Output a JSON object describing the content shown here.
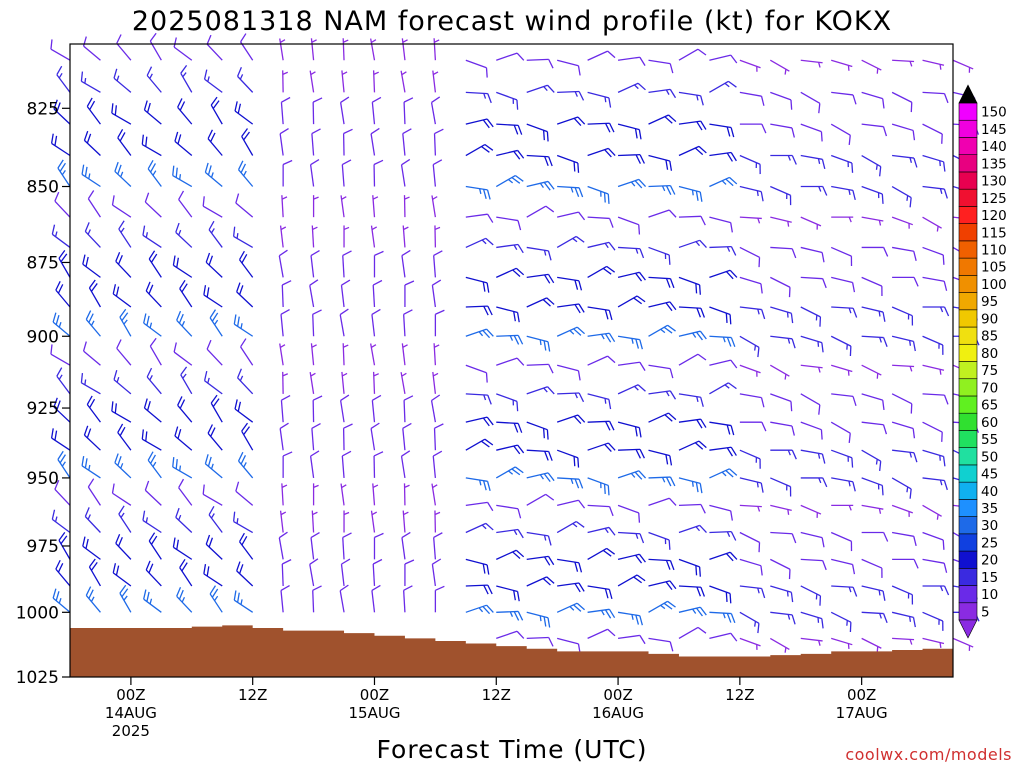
{
  "chart_data": {
    "type": "wind-barb-profile",
    "title": "2025081318 NAM forecast wind profile (kt) for KOKX",
    "xlabel": "Forecast Time (UTC)",
    "ylabel": "",
    "credit": "coolwx.com/models",
    "y_axis": {
      "unit": "hPa",
      "ylim": [
        1025,
        805
      ],
      "ticks": [
        825,
        850,
        875,
        900,
        925,
        950,
        975,
        1000,
        1025
      ]
    },
    "x_axis": {
      "start": "2025-08-13 18Z",
      "end": "2025-08-17 09Z",
      "step_hours": 3,
      "ticks": [
        {
          "time": "2025-08-14 00Z",
          "label1": "00Z",
          "label2": "14AUG",
          "label3": "2025"
        },
        {
          "time": "2025-08-14 12Z",
          "label1": "12Z",
          "label2": "",
          "label3": ""
        },
        {
          "time": "2025-08-15 00Z",
          "label1": "00Z",
          "label2": "15AUG",
          "label3": ""
        },
        {
          "time": "2025-08-15 12Z",
          "label1": "12Z",
          "label2": "",
          "label3": ""
        },
        {
          "time": "2025-08-16 00Z",
          "label1": "00Z",
          "label2": "16AUG",
          "label3": ""
        },
        {
          "time": "2025-08-16 12Z",
          "label1": "12Z",
          "label2": "",
          "label3": ""
        },
        {
          "time": "2025-08-17 00Z",
          "label1": "00Z",
          "label2": "17AUG",
          "label3": ""
        }
      ]
    },
    "colorbar": {
      "levels": [
        5,
        10,
        15,
        20,
        25,
        30,
        35,
        40,
        45,
        50,
        55,
        60,
        65,
        70,
        75,
        80,
        85,
        90,
        95,
        100,
        105,
        110,
        115,
        120,
        125,
        130,
        135,
        140,
        145,
        150
      ],
      "colors": [
        "#8a2be2",
        "#6a2ae8",
        "#3a2ae0",
        "#1010d0",
        "#1040e0",
        "#1e6ae8",
        "#1e90ff",
        "#10b0f0",
        "#10d0d0",
        "#20e0a0",
        "#20e060",
        "#30e030",
        "#60f020",
        "#90f020",
        "#c0f020",
        "#f0f010",
        "#f0e010",
        "#f0c800",
        "#f0a800",
        "#f09000",
        "#f07800",
        "#f06000",
        "#f04000",
        "#ff2020",
        "#f01030",
        "#e80050",
        "#e80080",
        "#f000b0",
        "#f000e0",
        "#f000ff"
      ],
      "lower_arrow_color": "#8a2be2",
      "upper_arrow_color": "#000000"
    },
    "terrain_color": "#a0522d",
    "surface_pressure": [
      {
        "time": "2025-08-13 18Z",
        "p": 1006
      },
      {
        "time": "2025-08-14 00Z",
        "p": 1006
      },
      {
        "time": "2025-08-14 03Z",
        "p": 1006
      },
      {
        "time": "2025-08-14 06Z",
        "p": 1005.5
      },
      {
        "time": "2025-08-14 09Z",
        "p": 1005
      },
      {
        "time": "2025-08-14 12Z",
        "p": 1006
      },
      {
        "time": "2025-08-14 15Z",
        "p": 1007
      },
      {
        "time": "2025-08-14 18Z",
        "p": 1007
      },
      {
        "time": "2025-08-14 21Z",
        "p": 1008
      },
      {
        "time": "2025-08-15 00Z",
        "p": 1009
      },
      {
        "time": "2025-08-15 03Z",
        "p": 1010
      },
      {
        "time": "2025-08-15 06Z",
        "p": 1011
      },
      {
        "time": "2025-08-15 09Z",
        "p": 1012
      },
      {
        "time": "2025-08-15 12Z",
        "p": 1013
      },
      {
        "time": "2025-08-15 15Z",
        "p": 1014
      },
      {
        "time": "2025-08-15 18Z",
        "p": 1015
      },
      {
        "time": "2025-08-15 21Z",
        "p": 1015
      },
      {
        "time": "2025-08-16 00Z",
        "p": 1015
      },
      {
        "time": "2025-08-16 03Z",
        "p": 1016
      },
      {
        "time": "2025-08-16 06Z",
        "p": 1017
      },
      {
        "time": "2025-08-16 09Z",
        "p": 1017
      },
      {
        "time": "2025-08-16 12Z",
        "p": 1017
      },
      {
        "time": "2025-08-16 15Z",
        "p": 1016.5
      },
      {
        "time": "2025-08-16 18Z",
        "p": 1016
      },
      {
        "time": "2025-08-16 21Z",
        "p": 1015
      },
      {
        "time": "2025-08-17 00Z",
        "p": 1015
      },
      {
        "time": "2025-08-17 03Z",
        "p": 1014.5
      },
      {
        "time": "2025-08-17 06Z",
        "p": 1014
      },
      {
        "time": "2025-08-17 09Z",
        "p": 1014
      }
    ],
    "wind_field": {
      "pressure_levels": [
        810,
        820,
        830,
        840,
        850,
        860,
        870,
        880,
        890,
        900,
        910,
        920,
        930,
        940,
        950,
        960,
        970,
        980,
        990,
        1000,
        1010,
        1020
      ],
      "barb_color": "#8a2be2",
      "phases": [
        {
          "from": "2025-08-13 18Z",
          "to": "2025-08-14 12Z",
          "direction_deg": [
            300,
            330
          ],
          "speed_kt": [
            10,
            25
          ]
        },
        {
          "from": "2025-08-14 12Z",
          "to": "2025-08-15 06Z",
          "direction_deg": [
            350,
            360
          ],
          "speed_kt": [
            5,
            10
          ]
        },
        {
          "from": "2025-08-15 06Z",
          "to": "2025-08-16 09Z",
          "direction_deg": [
            60,
            110
          ],
          "speed_kt": [
            10,
            25
          ]
        },
        {
          "from": "2025-08-16 09Z",
          "to": "2025-08-17 09Z",
          "direction_deg": [
            90,
            120
          ],
          "speed_kt": [
            5,
            15
          ]
        }
      ]
    }
  }
}
